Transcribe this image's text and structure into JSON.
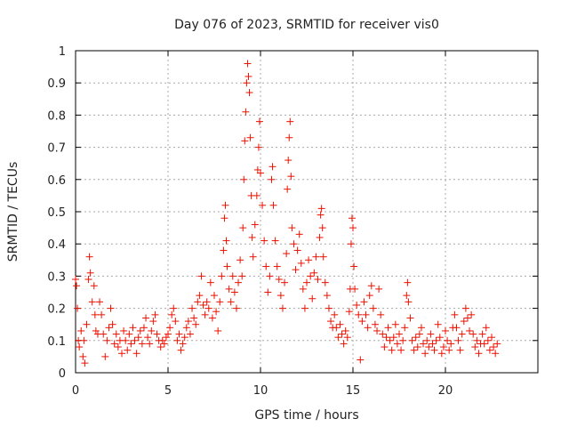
{
  "chart_data": {
    "type": "scatter",
    "title": "Day 076 of 2023, SRMTID for receiver vis0",
    "xlabel": "GPS time / hours",
    "ylabel": "SRMTID / TECUs",
    "xlim": [
      0,
      25
    ],
    "ylim": [
      0,
      1
    ],
    "xticks": [
      0,
      5,
      10,
      15,
      20
    ],
    "yticks": [
      0,
      0.1,
      0.2,
      0.3,
      0.4,
      0.5,
      0.6,
      0.7,
      0.8,
      0.9,
      1
    ],
    "xtick_labels": [
      "0",
      "5",
      "10",
      "15",
      "20"
    ],
    "ytick_labels": [
      "0",
      "0.1",
      "0.2",
      "0.3",
      "0.4",
      "0.5",
      "0.6",
      "0.7",
      "0.8",
      "0.9",
      "1"
    ],
    "grid": true,
    "marker": "plus",
    "marker_color": "#ee1100",
    "series": [
      {
        "name": "SRMTID",
        "points": [
          [
            0.0,
            0.29
          ],
          [
            0.05,
            0.27
          ],
          [
            0.1,
            0.2
          ],
          [
            0.15,
            0.1
          ],
          [
            0.2,
            0.08
          ],
          [
            0.3,
            0.13
          ],
          [
            0.4,
            0.05
          ],
          [
            0.45,
            0.1
          ],
          [
            0.5,
            0.03
          ],
          [
            0.6,
            0.15
          ],
          [
            0.7,
            0.29
          ],
          [
            0.75,
            0.36
          ],
          [
            0.8,
            0.31
          ],
          [
            0.9,
            0.22
          ],
          [
            1.0,
            0.27
          ],
          [
            1.05,
            0.18
          ],
          [
            1.1,
            0.13
          ],
          [
            1.2,
            0.12
          ],
          [
            1.3,
            0.22
          ],
          [
            1.4,
            0.18
          ],
          [
            1.5,
            0.12
          ],
          [
            1.6,
            0.05
          ],
          [
            1.7,
            0.1
          ],
          [
            1.8,
            0.14
          ],
          [
            1.9,
            0.2
          ],
          [
            2.0,
            0.15
          ],
          [
            2.1,
            0.09
          ],
          [
            2.2,
            0.12
          ],
          [
            2.3,
            0.08
          ],
          [
            2.4,
            0.1
          ],
          [
            2.5,
            0.06
          ],
          [
            2.6,
            0.13
          ],
          [
            2.7,
            0.1
          ],
          [
            2.8,
            0.07
          ],
          [
            2.9,
            0.12
          ],
          [
            3.0,
            0.09
          ],
          [
            3.1,
            0.14
          ],
          [
            3.2,
            0.1
          ],
          [
            3.3,
            0.06
          ],
          [
            3.4,
            0.11
          ],
          [
            3.5,
            0.13
          ],
          [
            3.6,
            0.09
          ],
          [
            3.7,
            0.14
          ],
          [
            3.8,
            0.17
          ],
          [
            3.9,
            0.11
          ],
          [
            4.0,
            0.09
          ],
          [
            4.1,
            0.13
          ],
          [
            4.2,
            0.16
          ],
          [
            4.3,
            0.18
          ],
          [
            4.4,
            0.12
          ],
          [
            4.5,
            0.1
          ],
          [
            4.6,
            0.08
          ],
          [
            4.7,
            0.1
          ],
          [
            4.8,
            0.09
          ],
          [
            4.9,
            0.11
          ],
          [
            5.0,
            0.12
          ],
          [
            5.1,
            0.14
          ],
          [
            5.2,
            0.18
          ],
          [
            5.3,
            0.2
          ],
          [
            5.4,
            0.16
          ],
          [
            5.5,
            0.1
          ],
          [
            5.6,
            0.12
          ],
          [
            5.7,
            0.07
          ],
          [
            5.8,
            0.09
          ],
          [
            5.9,
            0.11
          ],
          [
            6.0,
            0.14
          ],
          [
            6.1,
            0.16
          ],
          [
            6.2,
            0.12
          ],
          [
            6.3,
            0.2
          ],
          [
            6.4,
            0.17
          ],
          [
            6.5,
            0.15
          ],
          [
            6.6,
            0.22
          ],
          [
            6.7,
            0.24
          ],
          [
            6.8,
            0.3
          ],
          [
            6.9,
            0.21
          ],
          [
            7.0,
            0.18
          ],
          [
            7.1,
            0.22
          ],
          [
            7.2,
            0.2
          ],
          [
            7.3,
            0.28
          ],
          [
            7.4,
            0.17
          ],
          [
            7.5,
            0.24
          ],
          [
            7.6,
            0.19
          ],
          [
            7.7,
            0.13
          ],
          [
            7.8,
            0.22
          ],
          [
            7.9,
            0.3
          ],
          [
            8.0,
            0.38
          ],
          [
            8.05,
            0.48
          ],
          [
            8.1,
            0.52
          ],
          [
            8.15,
            0.41
          ],
          [
            8.2,
            0.33
          ],
          [
            8.3,
            0.26
          ],
          [
            8.4,
            0.22
          ],
          [
            8.5,
            0.3
          ],
          [
            8.6,
            0.25
          ],
          [
            8.7,
            0.2
          ],
          [
            8.8,
            0.28
          ],
          [
            8.9,
            0.35
          ],
          [
            9.0,
            0.3
          ],
          [
            9.05,
            0.45
          ],
          [
            9.1,
            0.6
          ],
          [
            9.15,
            0.72
          ],
          [
            9.2,
            0.81
          ],
          [
            9.25,
            0.9
          ],
          [
            9.3,
            0.96
          ],
          [
            9.35,
            0.92
          ],
          [
            9.4,
            0.87
          ],
          [
            9.45,
            0.73
          ],
          [
            9.5,
            0.55
          ],
          [
            9.55,
            0.42
          ],
          [
            9.6,
            0.36
          ],
          [
            9.7,
            0.46
          ],
          [
            9.8,
            0.55
          ],
          [
            9.85,
            0.63
          ],
          [
            9.9,
            0.7
          ],
          [
            9.95,
            0.78
          ],
          [
            10.0,
            0.62
          ],
          [
            10.1,
            0.52
          ],
          [
            10.2,
            0.41
          ],
          [
            10.3,
            0.33
          ],
          [
            10.4,
            0.25
          ],
          [
            10.5,
            0.3
          ],
          [
            10.6,
            0.6
          ],
          [
            10.65,
            0.64
          ],
          [
            10.7,
            0.52
          ],
          [
            10.8,
            0.41
          ],
          [
            10.9,
            0.33
          ],
          [
            11.0,
            0.29
          ],
          [
            11.1,
            0.24
          ],
          [
            11.2,
            0.2
          ],
          [
            11.3,
            0.28
          ],
          [
            11.4,
            0.37
          ],
          [
            11.45,
            0.57
          ],
          [
            11.5,
            0.66
          ],
          [
            11.55,
            0.73
          ],
          [
            11.6,
            0.78
          ],
          [
            11.65,
            0.61
          ],
          [
            11.7,
            0.45
          ],
          [
            11.8,
            0.4
          ],
          [
            11.9,
            0.32
          ],
          [
            12.0,
            0.38
          ],
          [
            12.1,
            0.43
          ],
          [
            12.2,
            0.34
          ],
          [
            12.3,
            0.26
          ],
          [
            12.4,
            0.2
          ],
          [
            12.5,
            0.28
          ],
          [
            12.6,
            0.35
          ],
          [
            12.7,
            0.3
          ],
          [
            12.8,
            0.23
          ],
          [
            12.9,
            0.31
          ],
          [
            13.0,
            0.36
          ],
          [
            13.1,
            0.29
          ],
          [
            13.2,
            0.42
          ],
          [
            13.25,
            0.49
          ],
          [
            13.3,
            0.51
          ],
          [
            13.35,
            0.45
          ],
          [
            13.4,
            0.36
          ],
          [
            13.5,
            0.28
          ],
          [
            13.6,
            0.24
          ],
          [
            13.7,
            0.2
          ],
          [
            13.8,
            0.16
          ],
          [
            13.9,
            0.14
          ],
          [
            14.0,
            0.18
          ],
          [
            14.1,
            0.14
          ],
          [
            14.2,
            0.11
          ],
          [
            14.3,
            0.15
          ],
          [
            14.4,
            0.12
          ],
          [
            14.5,
            0.09
          ],
          [
            14.6,
            0.13
          ],
          [
            14.7,
            0.11
          ],
          [
            14.8,
            0.19
          ],
          [
            14.85,
            0.26
          ],
          [
            14.9,
            0.4
          ],
          [
            14.95,
            0.48
          ],
          [
            15.0,
            0.45
          ],
          [
            15.05,
            0.33
          ],
          [
            15.1,
            0.26
          ],
          [
            15.2,
            0.21
          ],
          [
            15.3,
            0.18
          ],
          [
            15.4,
            0.04
          ],
          [
            15.5,
            0.16
          ],
          [
            15.6,
            0.22
          ],
          [
            15.7,
            0.18
          ],
          [
            15.8,
            0.14
          ],
          [
            15.9,
            0.24
          ],
          [
            16.0,
            0.27
          ],
          [
            16.1,
            0.2
          ],
          [
            16.2,
            0.15
          ],
          [
            16.3,
            0.13
          ],
          [
            16.4,
            0.26
          ],
          [
            16.5,
            0.18
          ],
          [
            16.6,
            0.12
          ],
          [
            16.7,
            0.08
          ],
          [
            16.8,
            0.11
          ],
          [
            16.9,
            0.14
          ],
          [
            17.0,
            0.1
          ],
          [
            17.1,
            0.07
          ],
          [
            17.2,
            0.11
          ],
          [
            17.3,
            0.15
          ],
          [
            17.4,
            0.09
          ],
          [
            17.5,
            0.12
          ],
          [
            17.6,
            0.07
          ],
          [
            17.7,
            0.1
          ],
          [
            17.8,
            0.14
          ],
          [
            17.9,
            0.24
          ],
          [
            17.95,
            0.28
          ],
          [
            18.0,
            0.22
          ],
          [
            18.1,
            0.17
          ],
          [
            18.2,
            0.1
          ],
          [
            18.3,
            0.07
          ],
          [
            18.4,
            0.11
          ],
          [
            18.5,
            0.08
          ],
          [
            18.6,
            0.12
          ],
          [
            18.7,
            0.14
          ],
          [
            18.8,
            0.09
          ],
          [
            18.9,
            0.06
          ],
          [
            19.0,
            0.1
          ],
          [
            19.1,
            0.08
          ],
          [
            19.2,
            0.12
          ],
          [
            19.3,
            0.09
          ],
          [
            19.4,
            0.07
          ],
          [
            19.5,
            0.1
          ],
          [
            19.6,
            0.15
          ],
          [
            19.7,
            0.11
          ],
          [
            19.8,
            0.06
          ],
          [
            19.9,
            0.08
          ],
          [
            20.0,
            0.13
          ],
          [
            20.1,
            0.1
          ],
          [
            20.2,
            0.07
          ],
          [
            20.3,
            0.09
          ],
          [
            20.4,
            0.14
          ],
          [
            20.5,
            0.18
          ],
          [
            20.6,
            0.14
          ],
          [
            20.7,
            0.1
          ],
          [
            20.8,
            0.07
          ],
          [
            20.9,
            0.12
          ],
          [
            21.0,
            0.16
          ],
          [
            21.1,
            0.2
          ],
          [
            21.2,
            0.17
          ],
          [
            21.3,
            0.13
          ],
          [
            21.4,
            0.18
          ],
          [
            21.5,
            0.12
          ],
          [
            21.6,
            0.08
          ],
          [
            21.7,
            0.1
          ],
          [
            21.8,
            0.06
          ],
          [
            21.9,
            0.09
          ],
          [
            22.0,
            0.12
          ],
          [
            22.1,
            0.09
          ],
          [
            22.2,
            0.14
          ],
          [
            22.3,
            0.1
          ],
          [
            22.4,
            0.07
          ],
          [
            22.5,
            0.11
          ],
          [
            22.6,
            0.08
          ],
          [
            22.7,
            0.06
          ],
          [
            22.8,
            0.09
          ]
        ]
      }
    ]
  }
}
